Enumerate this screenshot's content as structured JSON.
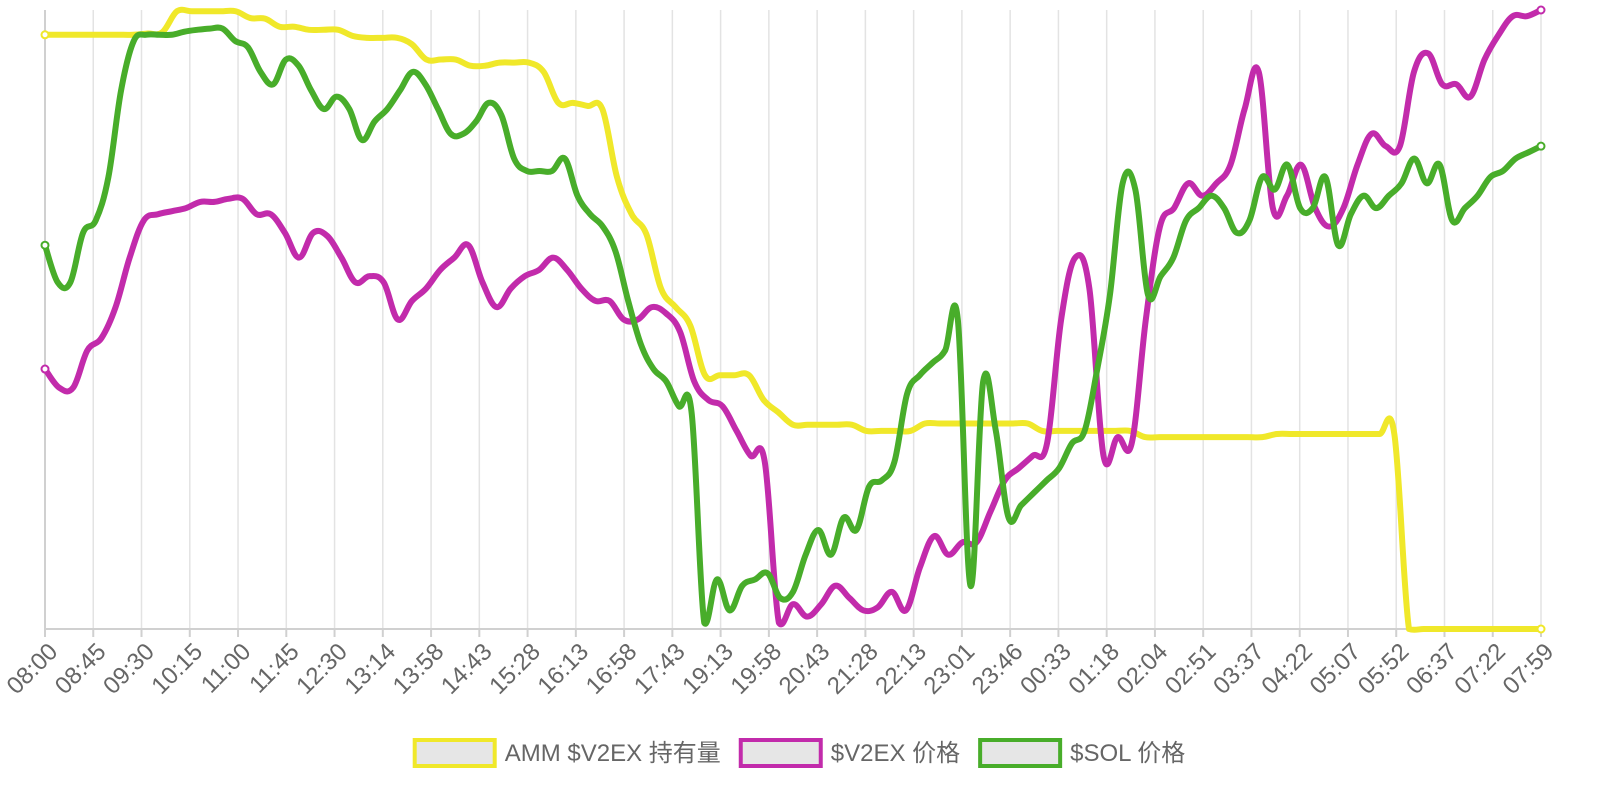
{
  "chart_data": {
    "type": "line",
    "title": "",
    "xlabel": "",
    "ylabel": "",
    "grid": {
      "x": true,
      "y": false
    },
    "legend_position": "bottom",
    "ylim": [
      0,
      100
    ],
    "x_ticks": [
      "08:00",
      "08:45",
      "09:30",
      "10:15",
      "11:00",
      "11:45",
      "12:30",
      "13:14",
      "13:58",
      "14:43",
      "15:28",
      "16:13",
      "16:58",
      "17:43",
      "19:13",
      "19:58",
      "20:43",
      "21:28",
      "22:13",
      "23:01",
      "23:46",
      "00:33",
      "01:18",
      "02:04",
      "02:51",
      "03:37",
      "04:22",
      "05:07",
      "05:52",
      "06:37",
      "07:22",
      "07:59"
    ],
    "series": [
      {
        "name": "AMM $V2EX 持有量",
        "color": "#f0e82a",
        "values": [
          96,
          96,
          96,
          96,
          96,
          96,
          96,
          96.2,
          96.4,
          99.8,
          99.8,
          99.8,
          99.8,
          99.8,
          98.7,
          98.6,
          97.3,
          97.3,
          96.8,
          96.8,
          96.8,
          95.8,
          95.5,
          95.5,
          95.5,
          94.5,
          92,
          92,
          92,
          91,
          91,
          91.5,
          91.5,
          91.5,
          90,
          85,
          85,
          84.5,
          84,
          73,
          67,
          63.8,
          55,
          52,
          49,
          41,
          41,
          41,
          41,
          37,
          35,
          33,
          33,
          33,
          33,
          33,
          32,
          32,
          32,
          32,
          33.2,
          33.2,
          33.2,
          33.2,
          33.2,
          33.2,
          33.2,
          33.2,
          32,
          32,
          32,
          32,
          32,
          32,
          32,
          31,
          31,
          31,
          31,
          31,
          31,
          31,
          31,
          31,
          31.5,
          31.5,
          31.5,
          31.5,
          31.5,
          31.5,
          31.5,
          31.5,
          31.5,
          0,
          0,
          0,
          0,
          0,
          0,
          0,
          0,
          0,
          0
        ]
      },
      {
        "name": "$V2EX 价格",
        "color": "#c22bab",
        "values": [
          42,
          39,
          39,
          45,
          47,
          52,
          60,
          66,
          67,
          67.5,
          68,
          69,
          69,
          69.5,
          69.5,
          67,
          67,
          64,
          60,
          64,
          63.5,
          60,
          56,
          57,
          56,
          50,
          53,
          55,
          58,
          60,
          62,
          56,
          52,
          55,
          57,
          58,
          60,
          58,
          55,
          53,
          53,
          50,
          50,
          52,
          51,
          48,
          40,
          37,
          36,
          32,
          28,
          27,
          1,
          4,
          2,
          4,
          7,
          5,
          3,
          3.5,
          6,
          3,
          10,
          15,
          12,
          14,
          14,
          19,
          24,
          26,
          28,
          30,
          50,
          60,
          55,
          28,
          31,
          30,
          50,
          65,
          68,
          72,
          70,
          72,
          75,
          84,
          90,
          68,
          70,
          75,
          68,
          65,
          68,
          75,
          80,
          78,
          78,
          90,
          93,
          88,
          88,
          86,
          92,
          96,
          99,
          99,
          100
        ]
      },
      {
        "name": "$SOL 价格",
        "color": "#48ad2a",
        "values": [
          62,
          56,
          56,
          64,
          66,
          73,
          87,
          95,
          96,
          96,
          96,
          96.5,
          96.8,
          97,
          97,
          95,
          94,
          90,
          88,
          92,
          91,
          87,
          84,
          86,
          84,
          79,
          82,
          84,
          87,
          90,
          88,
          84,
          80,
          80,
          82,
          85,
          83,
          76,
          74,
          74,
          74,
          76,
          70,
          67,
          65,
          61,
          53,
          46,
          42,
          40,
          36,
          35,
          1,
          8,
          3,
          7,
          8,
          9,
          5,
          6,
          12,
          16,
          12,
          18,
          16,
          23,
          24,
          27,
          38,
          41,
          43,
          45,
          50,
          7,
          40,
          32,
          18,
          20,
          22,
          24,
          26,
          30,
          32,
          42,
          54,
          72,
          71,
          54,
          57,
          60,
          66,
          68,
          70,
          68,
          64,
          66,
          73,
          71,
          75,
          68,
          68,
          73,
          62,
          67,
          70,
          68,
          70,
          72,
          76,
          72,
          75,
          66,
          68,
          70,
          73,
          74,
          76,
          77,
          78
        ]
      }
    ]
  }
}
